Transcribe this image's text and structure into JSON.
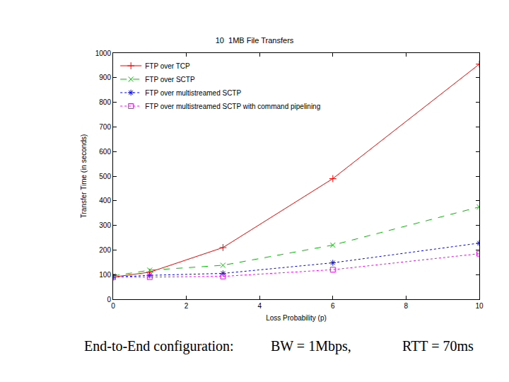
{
  "chart_data": {
    "type": "line",
    "title": "10  1MB File Transfers",
    "x_label": "Loss Probability (p)",
    "y_label": "Transfer Time (in seconds)",
    "x": [
      0,
      1,
      3,
      6,
      10
    ],
    "series": [
      {
        "name": "FTP over TCP",
        "color": "#ff0000",
        "marker": "plus",
        "line_style": "solid",
        "values": [
          90,
          110,
          210,
          490,
          955
        ]
      },
      {
        "name": "FTP over SCTP",
        "color": "#00c000",
        "marker": "x",
        "line_style": "dash",
        "values": [
          95,
          118,
          138,
          220,
          375
        ]
      },
      {
        "name": "FTP over multistreamed SCTP",
        "color": "#0000ff",
        "marker": "asterisk",
        "line_style": "dot",
        "values": [
          90,
          97,
          105,
          148,
          228
        ]
      },
      {
        "name": "FTP over multistreamed SCTP with command pipelining",
        "color": "#ff00ff",
        "marker": "square",
        "line_style": "dot",
        "values": [
          90,
          90,
          93,
          120,
          185
        ]
      }
    ],
    "xlim": [
      0,
      10
    ],
    "xticks": [
      0,
      2,
      4,
      6,
      8,
      10
    ],
    "ylim": [
      0,
      1000
    ],
    "yticks": [
      0,
      100,
      200,
      300,
      400,
      500,
      600,
      700,
      800,
      900,
      1000
    ],
    "grid": false,
    "legend": "upper left",
    "annotations": [
      "End-to-End configuration:",
      "BW = 1Mbps,",
      "RTT = 70ms"
    ]
  }
}
